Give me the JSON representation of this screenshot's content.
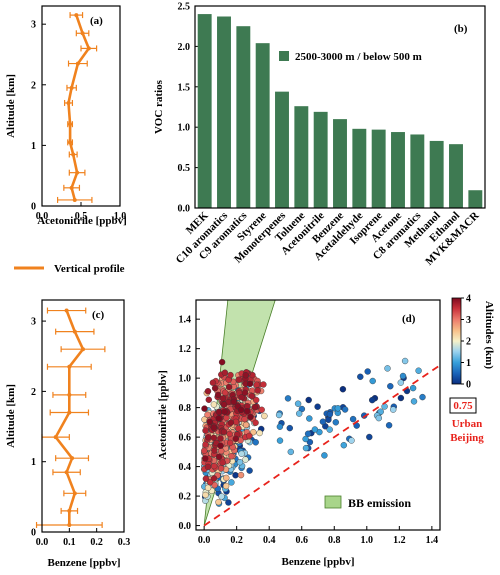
{
  "chart_data": [
    {
      "type": "line",
      "panel_label": "(a)",
      "xlabel": "Acetonitrile [ppbv]",
      "ylabel": "Altitude [km]",
      "xlim": [
        0,
        1.0
      ],
      "ylim": [
        0,
        3.3
      ],
      "xticks": [
        "0.0",
        "0.5",
        "1.0"
      ],
      "yticks": [
        "0",
        "1",
        "2",
        "3"
      ],
      "color": "#f0821e",
      "series": [
        {
          "name": "Vertical profile",
          "x": [
            0.42,
            0.38,
            0.45,
            0.4,
            0.36,
            0.36,
            0.34,
            0.38,
            0.46,
            0.6,
            0.52,
            0.44
          ],
          "y": [
            0.1,
            0.3,
            0.55,
            0.85,
            1.05,
            1.35,
            1.7,
            1.95,
            2.35,
            2.6,
            2.85,
            3.15
          ],
          "err": [
            0.22,
            0.1,
            0.1,
            0.05,
            0.03,
            0.03,
            0.05,
            0.06,
            0.12,
            0.1,
            0.08,
            0.08
          ]
        }
      ]
    },
    {
      "type": "bar",
      "panel_label": "(b)",
      "ylabel": "VOC ratios",
      "ylim": [
        0,
        2.5
      ],
      "yticks": [
        "0.0",
        "0.5",
        "1.0",
        "1.5",
        "2.0",
        "2.5"
      ],
      "color": "#3e7a52",
      "legend": "2500-3000 m / below 500 m",
      "categories": [
        "MEK",
        "C10 aromatics",
        "C9 aromatics",
        "Styrene",
        "Monoterpenes",
        "Toluene",
        "Acetonitrile",
        "Benzene",
        "Acetaldehyde",
        "Isoprene",
        "Acetone",
        "C8 aromatics",
        "Methanol",
        "Ethanol",
        "MVK&MACR"
      ],
      "values": [
        2.4,
        2.37,
        2.25,
        2.04,
        1.44,
        1.26,
        1.19,
        1.1,
        0.98,
        0.97,
        0.94,
        0.91,
        0.83,
        0.79,
        0.22
      ]
    },
    {
      "type": "line",
      "panel_label": "(c)",
      "xlabel": "Benzene [ppbv]",
      "ylabel": "Altitude [km]",
      "xlim": [
        0,
        0.3
      ],
      "ylim": [
        0,
        3.3
      ],
      "xticks": [
        "0.0",
        "0.1",
        "0.2",
        "0.3"
      ],
      "yticks": [
        "0",
        "1",
        "2",
        "3"
      ],
      "color": "#f0821e",
      "series": [
        {
          "x": [
            0.1,
            0.1,
            0.12,
            0.09,
            0.11,
            0.05,
            0.1,
            0.1,
            0.1,
            0.15,
            0.12,
            0.09
          ],
          "y": [
            0.1,
            0.3,
            0.55,
            0.85,
            1.05,
            1.35,
            1.7,
            1.95,
            2.35,
            2.6,
            2.85,
            3.15
          ],
          "err": [
            0.12,
            0.03,
            0.04,
            0.05,
            0.06,
            0.05,
            0.07,
            0.06,
            0.08,
            0.08,
            0.07,
            0.07
          ]
        }
      ]
    },
    {
      "type": "scatter",
      "panel_label": "(d)",
      "xlabel": "Benzene [ppbv]",
      "ylabel": "Acetonitrile [ppbv]",
      "xlim": [
        -0.05,
        1.45
      ],
      "ylim": [
        -0.03,
        1.53
      ],
      "xticks": [
        "0.0",
        "0.2",
        "0.4",
        "0.6",
        "0.8",
        "1.0",
        "1.2",
        "1.4"
      ],
      "yticks": [
        "0.0",
        "0.2",
        "0.4",
        "0.6",
        "0.8",
        "1.0",
        "1.2",
        "1.4"
      ],
      "colorbar": {
        "label": "Altitudes (km)",
        "range": [
          0,
          4
        ],
        "ticks": [
          "0",
          "1",
          "2",
          "3",
          "4"
        ]
      },
      "ratio_line": {
        "slope": 0.75,
        "label": "0.75",
        "annotation": [
          "Urban",
          "Beijing"
        ],
        "color": "#e8231c"
      },
      "bb_emission": {
        "label": "BB emission",
        "slopes": [
          3.5,
          10.5
        ],
        "color": "#a8d58a"
      }
    }
  ]
}
